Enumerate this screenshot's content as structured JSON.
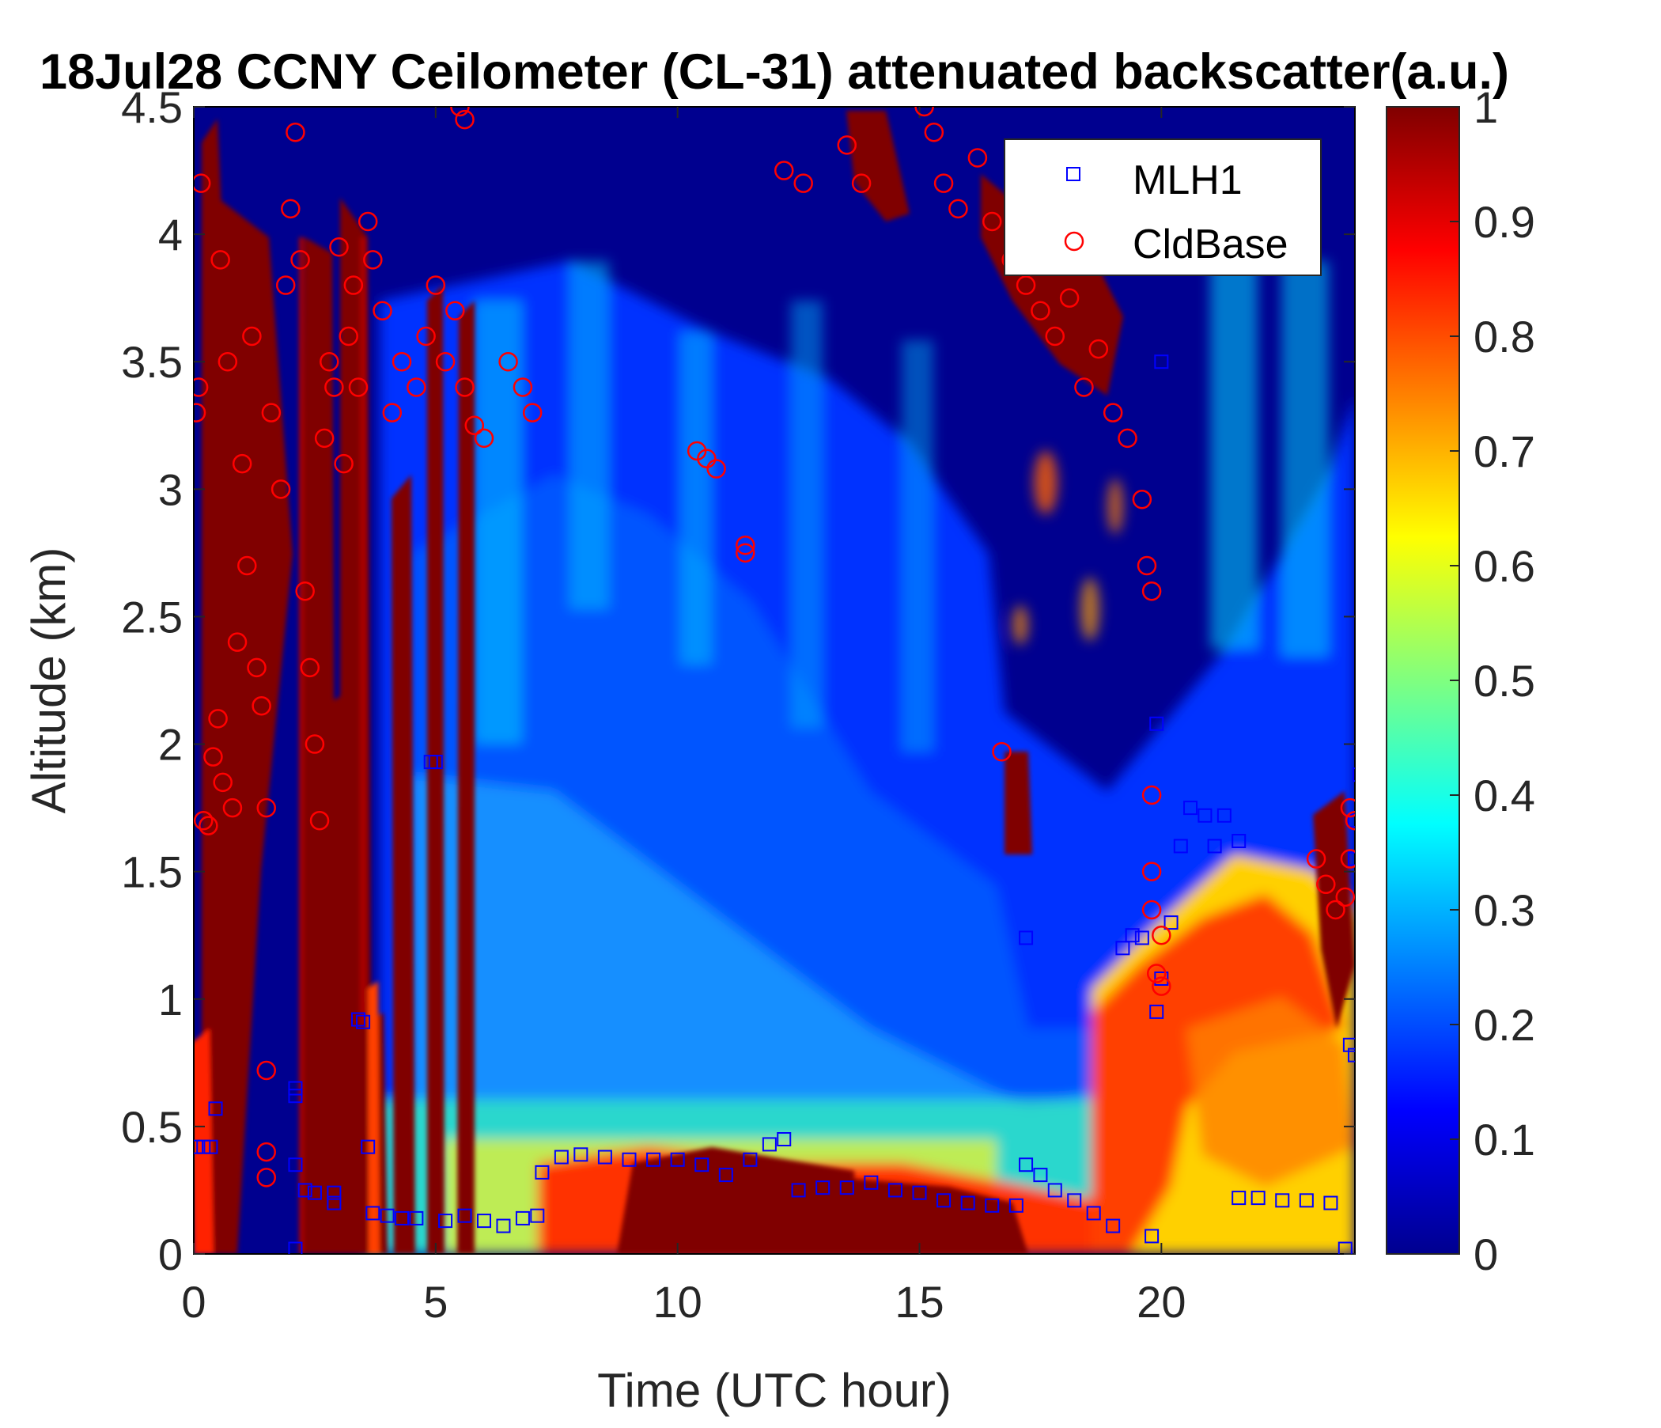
{
  "chart_data": {
    "type": "heatmap",
    "title": "18Jul28 CCNY Ceilometer (CL-31) attenuated backscatter(a.u.)",
    "xlabel": "Time (UTC hour)",
    "ylabel": "Altitude (km)",
    "xlim": [
      0,
      24
    ],
    "ylim": [
      0,
      4.5
    ],
    "xticks": [
      0,
      5,
      10,
      15,
      20
    ],
    "yticks": [
      0,
      0.5,
      1,
      1.5,
      2,
      2.5,
      3,
      3.5,
      4,
      4.5
    ],
    "colorbar": {
      "min": 0,
      "max": 1,
      "colormap": "jet",
      "ticks": [
        0,
        0.1,
        0.2,
        0.3,
        0.4,
        0.5,
        0.6,
        0.7,
        0.8,
        0.9,
        1
      ]
    },
    "grid": false,
    "legend_position": "top-right",
    "series": [
      {
        "name": "MLH1",
        "marker": "square",
        "color": "#0000ff",
        "points": [
          [
            0.05,
            0.42
          ],
          [
            0.2,
            0.42
          ],
          [
            0.35,
            0.42
          ],
          [
            0.45,
            0.57
          ],
          [
            2.1,
            0.65
          ],
          [
            2.1,
            0.62
          ],
          [
            2.1,
            0.35
          ],
          [
            2.1,
            0.02
          ],
          [
            2.3,
            0.25
          ],
          [
            2.5,
            0.24
          ],
          [
            2.9,
            0.24
          ],
          [
            2.9,
            0.2
          ],
          [
            3.4,
            0.92
          ],
          [
            3.5,
            0.91
          ],
          [
            3.6,
            0.42
          ],
          [
            3.7,
            0.16
          ],
          [
            4.0,
            0.15
          ],
          [
            4.3,
            0.14
          ],
          [
            4.6,
            0.14
          ],
          [
            4.9,
            1.93
          ],
          [
            5.0,
            1.93
          ],
          [
            5.2,
            0.13
          ],
          [
            5.6,
            0.15
          ],
          [
            6.0,
            0.13
          ],
          [
            6.4,
            0.11
          ],
          [
            6.8,
            0.14
          ],
          [
            7.1,
            0.15
          ],
          [
            7.2,
            0.32
          ],
          [
            7.6,
            0.38
          ],
          [
            8.0,
            0.39
          ],
          [
            8.5,
            0.38
          ],
          [
            9.0,
            0.37
          ],
          [
            9.5,
            0.37
          ],
          [
            10.0,
            0.37
          ],
          [
            10.5,
            0.35
          ],
          [
            11.0,
            0.31
          ],
          [
            11.5,
            0.37
          ],
          [
            11.9,
            0.43
          ],
          [
            12.2,
            0.45
          ],
          [
            12.5,
            0.25
          ],
          [
            13.0,
            0.26
          ],
          [
            13.5,
            0.26
          ],
          [
            14.0,
            0.28
          ],
          [
            14.5,
            0.25
          ],
          [
            15.0,
            0.24
          ],
          [
            15.5,
            0.21
          ],
          [
            16.0,
            0.2
          ],
          [
            16.5,
            0.19
          ],
          [
            17.0,
            0.19
          ],
          [
            17.2,
            1.24
          ],
          [
            17.2,
            0.35
          ],
          [
            17.5,
            0.31
          ],
          [
            17.8,
            0.25
          ],
          [
            18.2,
            0.21
          ],
          [
            18.6,
            0.16
          ],
          [
            19.0,
            0.11
          ],
          [
            19.2,
            1.2
          ],
          [
            19.4,
            1.25
          ],
          [
            19.6,
            1.24
          ],
          [
            19.8,
            0.07
          ],
          [
            19.9,
            0.95
          ],
          [
            19.9,
            2.08
          ],
          [
            20.0,
            1.08
          ],
          [
            20.0,
            3.5
          ],
          [
            20.2,
            1.3
          ],
          [
            20.4,
            1.6
          ],
          [
            20.6,
            1.75
          ],
          [
            20.9,
            1.72
          ],
          [
            21.1,
            1.6
          ],
          [
            21.3,
            1.72
          ],
          [
            21.6,
            1.62
          ],
          [
            21.6,
            0.22
          ],
          [
            22.0,
            0.22
          ],
          [
            22.5,
            0.21
          ],
          [
            23.0,
            0.21
          ],
          [
            23.5,
            0.2
          ],
          [
            23.8,
            0.02
          ],
          [
            23.9,
            0.82
          ],
          [
            24.0,
            0.78
          ],
          [
            24.0,
            1.7
          ],
          [
            24.0,
            1.55
          ],
          [
            24.1,
            1.88
          ]
        ]
      },
      {
        "name": "CldBase",
        "marker": "circle",
        "color": "#ff0000",
        "points": [
          [
            0.05,
            3.3
          ],
          [
            0.1,
            3.4
          ],
          [
            0.15,
            4.2
          ],
          [
            0.2,
            1.7
          ],
          [
            0.3,
            1.68
          ],
          [
            0.4,
            1.95
          ],
          [
            0.5,
            2.1
          ],
          [
            0.55,
            3.9
          ],
          [
            0.6,
            1.85
          ],
          [
            0.7,
            3.5
          ],
          [
            0.8,
            1.75
          ],
          [
            0.9,
            2.4
          ],
          [
            1.0,
            3.1
          ],
          [
            1.1,
            2.7
          ],
          [
            1.2,
            3.6
          ],
          [
            1.3,
            2.3
          ],
          [
            1.4,
            2.15
          ],
          [
            1.5,
            1.75
          ],
          [
            1.5,
            0.72
          ],
          [
            1.5,
            0.4
          ],
          [
            1.5,
            0.3
          ],
          [
            1.6,
            3.3
          ],
          [
            1.8,
            3.0
          ],
          [
            1.9,
            3.8
          ],
          [
            2.0,
            4.1
          ],
          [
            2.1,
            4.4
          ],
          [
            2.2,
            3.9
          ],
          [
            2.3,
            2.6
          ],
          [
            2.4,
            2.3
          ],
          [
            2.5,
            2.0
          ],
          [
            2.6,
            1.7
          ],
          [
            2.7,
            3.2
          ],
          [
            2.8,
            3.5
          ],
          [
            2.9,
            3.4
          ],
          [
            3.0,
            3.95
          ],
          [
            3.1,
            3.1
          ],
          [
            3.2,
            3.6
          ],
          [
            3.3,
            3.8
          ],
          [
            3.4,
            3.4
          ],
          [
            3.6,
            4.05
          ],
          [
            3.7,
            3.9
          ],
          [
            3.9,
            3.7
          ],
          [
            4.1,
            3.3
          ],
          [
            4.3,
            3.5
          ],
          [
            4.6,
            3.4
          ],
          [
            4.8,
            3.6
          ],
          [
            5.0,
            3.8
          ],
          [
            5.2,
            3.5
          ],
          [
            5.4,
            3.7
          ],
          [
            5.5,
            4.5
          ],
          [
            5.6,
            4.45
          ],
          [
            5.6,
            3.4
          ],
          [
            5.8,
            3.25
          ],
          [
            6.0,
            3.2
          ],
          [
            6.5,
            3.5
          ],
          [
            6.8,
            3.4
          ],
          [
            7.0,
            3.3
          ],
          [
            10.4,
            3.15
          ],
          [
            10.6,
            3.12
          ],
          [
            10.8,
            3.08
          ],
          [
            11.4,
            2.78
          ],
          [
            11.4,
            2.75
          ],
          [
            12.2,
            4.25
          ],
          [
            12.6,
            4.2
          ],
          [
            13.5,
            4.35
          ],
          [
            13.8,
            4.2
          ],
          [
            15.1,
            4.5
          ],
          [
            15.3,
            4.4
          ],
          [
            15.5,
            4.2
          ],
          [
            15.8,
            4.1
          ],
          [
            16.2,
            4.3
          ],
          [
            16.5,
            4.05
          ],
          [
            16.7,
            1.97
          ],
          [
            16.9,
            3.9
          ],
          [
            17.2,
            3.8
          ],
          [
            17.5,
            3.7
          ],
          [
            17.8,
            3.6
          ],
          [
            18.1,
            3.75
          ],
          [
            18.4,
            3.4
          ],
          [
            18.7,
            3.55
          ],
          [
            19.0,
            3.3
          ],
          [
            19.3,
            3.2
          ],
          [
            19.6,
            2.96
          ],
          [
            19.7,
            2.7
          ],
          [
            19.8,
            2.6
          ],
          [
            19.8,
            1.8
          ],
          [
            19.8,
            1.5
          ],
          [
            19.8,
            1.35
          ],
          [
            19.9,
            1.1
          ],
          [
            20.0,
            1.05
          ],
          [
            20.0,
            1.25
          ],
          [
            23.2,
            1.55
          ],
          [
            23.4,
            1.45
          ],
          [
            23.6,
            1.35
          ],
          [
            23.8,
            1.4
          ],
          [
            23.9,
            1.55
          ],
          [
            23.9,
            1.75
          ],
          [
            24.0,
            1.7
          ]
        ]
      }
    ]
  }
}
